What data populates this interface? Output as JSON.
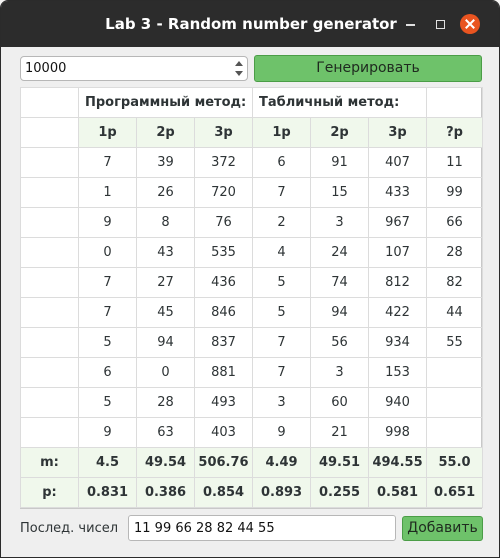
{
  "window": {
    "title": "Lab 3 - Random number generator"
  },
  "controls": {
    "count_value": "10000",
    "generate_label": "Генерировать"
  },
  "table": {
    "methods": {
      "programmatic": "Программный метод:",
      "tabular": "Табличный метод:"
    },
    "columns": [
      "1р",
      "2р",
      "3р",
      "1р",
      "2р",
      "3р",
      "?р"
    ],
    "rows": [
      [
        "7",
        "39",
        "372",
        "6",
        "91",
        "407",
        "11"
      ],
      [
        "1",
        "26",
        "720",
        "7",
        "15",
        "433",
        "99"
      ],
      [
        "9",
        "8",
        "76",
        "2",
        "3",
        "967",
        "66"
      ],
      [
        "0",
        "43",
        "535",
        "4",
        "24",
        "107",
        "28"
      ],
      [
        "7",
        "27",
        "436",
        "5",
        "74",
        "812",
        "82"
      ],
      [
        "7",
        "45",
        "846",
        "5",
        "94",
        "422",
        "44"
      ],
      [
        "5",
        "94",
        "837",
        "7",
        "56",
        "934",
        "55"
      ],
      [
        "6",
        "0",
        "881",
        "7",
        "3",
        "153",
        ""
      ],
      [
        "5",
        "28",
        "493",
        "3",
        "60",
        "940",
        ""
      ],
      [
        "9",
        "63",
        "403",
        "9",
        "21",
        "998",
        ""
      ]
    ],
    "m_label": "m:",
    "m_values": [
      "4.5",
      "49.54",
      "506.76",
      "4.49",
      "49.51",
      "494.55",
      "55.0"
    ],
    "p_label": "p:",
    "p_values": [
      "0.831",
      "0.386",
      "0.854",
      "0.893",
      "0.255",
      "0.581",
      "0.651"
    ]
  },
  "footer": {
    "last_label": "Послед. чисел",
    "last_value": "11 99 66 28 82 44 55",
    "add_label": "Добавить"
  },
  "colors": {
    "accent_green": "#6ec26a",
    "header_bg": "#f0f8ec",
    "close_orange": "#e95420",
    "titlebar": "#2c2c2c"
  }
}
